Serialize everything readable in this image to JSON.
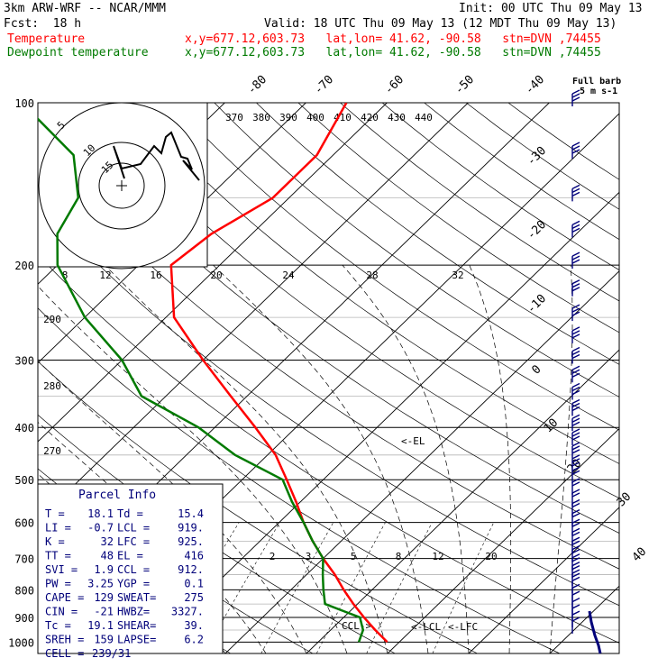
{
  "header": {
    "title": "3km ARW-WRF -- NCAR/MMM",
    "init": "Init: 00 UTC Thu 09 May 13",
    "fcst": "Fcst:  18 h",
    "valid": "Valid: 18 UTC Thu 09 May 13 (12 MDT Thu 09 May 13)",
    "temperature_label": "Temperature",
    "dewpoint_label": "Dewpoint temperature",
    "location_line": "x,y=677.12,603.73   lat,lon= 41.62, -90.58   stn=DVN ,74455",
    "colors": {
      "temperature": "#ff0000",
      "dewpoint": "#007a00",
      "text": "#000000",
      "indices": "#00007a"
    }
  },
  "chart_data": {
    "type": "skew-t",
    "pressure_levels": [
      "100",
      "200",
      "300",
      "400",
      "500",
      "600",
      "700",
      "800",
      "900",
      "1000"
    ],
    "isotherm_labels": [
      "-80",
      "-70",
      "-60",
      "-50",
      "-40",
      "-30",
      "-20",
      "-10",
      "0",
      "10",
      "20",
      "30",
      "40"
    ],
    "theta_e_labels": [
      "370",
      "380",
      "390",
      "400",
      "410",
      "420",
      "430",
      "440"
    ],
    "hodograph_speed_labels": [
      "kts",
      "8",
      "12",
      "16",
      "20",
      "24",
      "28",
      "32"
    ],
    "dry_adiabat_labels": [
      "290",
      "280",
      "270"
    ],
    "mixing_ratio_labels": [
      "2",
      "3",
      "5",
      "8",
      "12",
      "20"
    ],
    "markers": {
      "el": "<-EL",
      "ccl": "CCL->",
      "lcl": "<-LCL",
      "lfc": "<-LFC"
    },
    "hodograph_ring_labels": [
      "5",
      "10",
      "15"
    ],
    "wind_barb_key": "Full barb = 5 m s-1",
    "temperature": {
      "name": "Temperature",
      "points": [
        {
          "p": 1000,
          "t": 18.5
        },
        {
          "p": 950,
          "t": 15.5
        },
        {
          "p": 900,
          "t": 12.5
        },
        {
          "p": 850,
          "t": 9.5
        },
        {
          "p": 800,
          "t": 6.5
        },
        {
          "p": 750,
          "t": 3.5
        },
        {
          "p": 700,
          "t": 0
        },
        {
          "p": 650,
          "t": -3.5
        },
        {
          "p": 600,
          "t": -7
        },
        {
          "p": 550,
          "t": -10.5
        },
        {
          "p": 500,
          "t": -14.5
        },
        {
          "p": 450,
          "t": -19
        },
        {
          "p": 400,
          "t": -25
        },
        {
          "p": 350,
          "t": -32
        },
        {
          "p": 300,
          "t": -40
        },
        {
          "p": 250,
          "t": -49
        },
        {
          "p": 200,
          "t": -56
        },
        {
          "p": 175,
          "t": -55
        },
        {
          "p": 150,
          "t": -52
        },
        {
          "p": 125,
          "t": -52
        },
        {
          "p": 100,
          "t": -55
        }
      ]
    },
    "dewpoint": {
      "name": "Dewpoint temperature",
      "points": [
        {
          "p": 1000,
          "t": 15
        },
        {
          "p": 950,
          "t": 14
        },
        {
          "p": 900,
          "t": 12
        },
        {
          "p": 850,
          "t": 6
        },
        {
          "p": 800,
          "t": 4
        },
        {
          "p": 750,
          "t": 2
        },
        {
          "p": 700,
          "t": 0
        },
        {
          "p": 650,
          "t": -3.5
        },
        {
          "p": 600,
          "t": -7
        },
        {
          "p": 550,
          "t": -11
        },
        {
          "p": 500,
          "t": -15
        },
        {
          "p": 450,
          "t": -24
        },
        {
          "p": 400,
          "t": -32
        },
        {
          "p": 350,
          "t": -43
        },
        {
          "p": 300,
          "t": -50
        },
        {
          "p": 250,
          "t": -60
        },
        {
          "p": 200,
          "t": -70
        },
        {
          "p": 175,
          "t": -74
        },
        {
          "p": 150,
          "t": -76
        },
        {
          "p": 125,
          "t": -82
        },
        {
          "p": 100,
          "t": -95
        }
      ]
    },
    "parcel_info": {
      "title": "Parcel Info",
      "rows": [
        [
          "T  =",
          "18.1",
          "Td  =",
          "15.4"
        ],
        [
          "LI =",
          "-0.7",
          "LCL =",
          "919."
        ],
        [
          "K  =",
          "32",
          "LFC =",
          "925."
        ],
        [
          "TT =",
          "48",
          "EL  =",
          "416"
        ],
        [
          "SVI =",
          "1.9",
          "CCL =",
          "912."
        ],
        [
          "PW =",
          "3.25",
          "YGP =",
          "0.1"
        ],
        [
          "CAPE =",
          "129",
          "SWEAT=",
          "275"
        ],
        [
          "CIN =",
          "-21",
          "HWBZ=",
          "3327."
        ],
        [
          "Tc =",
          "19.1",
          "SHEAR=",
          "39."
        ],
        [
          "SREH =",
          "159",
          "LAPSE=",
          "6.2"
        ],
        [
          "CELL =",
          "239/31",
          "",
          ""
        ]
      ]
    }
  }
}
